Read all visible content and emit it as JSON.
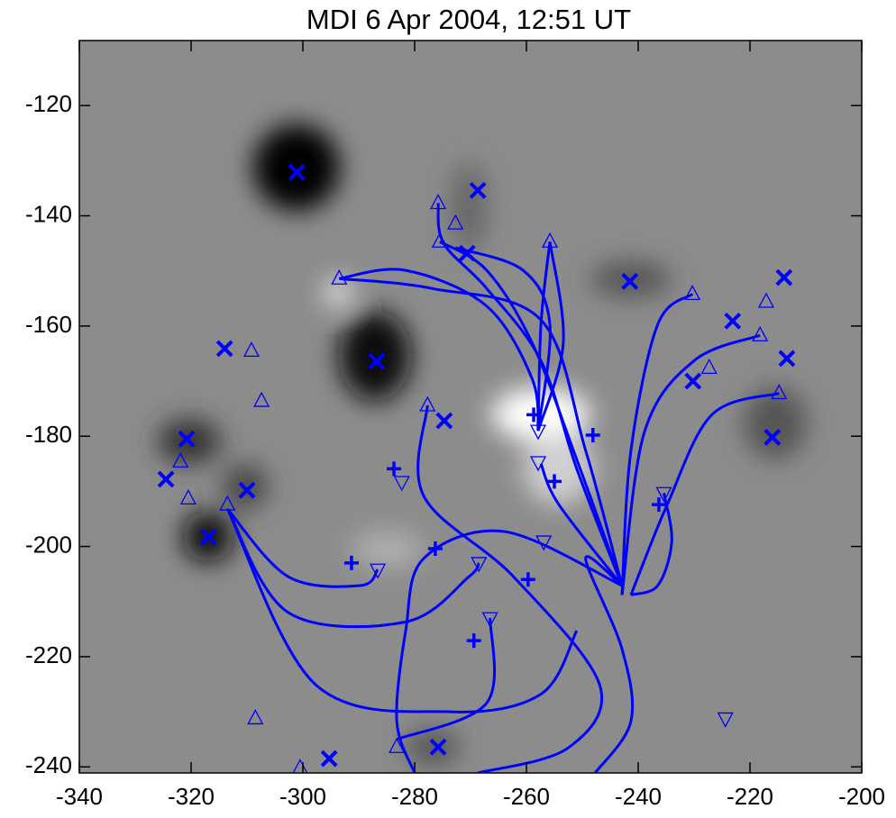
{
  "chart_data": {
    "type": "scatter",
    "title": "MDI 6 Apr 2004, 12:51 UT",
    "xlim": [
      -340,
      -200
    ],
    "ylim": [
      -241.1,
      -108.2
    ],
    "xticks": [
      -340,
      -320,
      -300,
      -280,
      -260,
      -240,
      -220,
      -200
    ],
    "yticks": [
      -120,
      -140,
      -160,
      -180,
      -200,
      -220,
      -240
    ],
    "series": [
      {
        "marker": "x",
        "color": "#0000ff",
        "x": [
          -301.1,
          -268.7,
          -270.6,
          -241.5,
          -213.9,
          -223.1,
          -213.4,
          -230.2,
          -216.0,
          -286.8,
          -314.0,
          -274.7,
          -320.8,
          -310.0,
          -324.5,
          -316.9,
          -295.3,
          -275.8
        ],
        "y": [
          -132.1,
          -135.4,
          -146.8,
          -151.9,
          -151.2,
          -159.1,
          -165.9,
          -170.0,
          -180.2,
          -166.4,
          -164.1,
          -177.2,
          -180.5,
          -189.8,
          -187.8,
          -198.3,
          -238.5,
          -236.4
        ]
      },
      {
        "marker": "plus",
        "color": "#0000ff",
        "x": [
          -258.7,
          -248.1,
          -255.0,
          -236.3,
          -283.7,
          -291.3,
          -276.3,
          -259.7,
          -269.4
        ],
        "y": [
          -176.1,
          -179.8,
          -188.2,
          -192.4,
          -185.9,
          -203.0,
          -200.4,
          -206.0,
          -217.1
        ]
      },
      {
        "marker": "triangle-up",
        "color": "#0000ff",
        "x": [
          -275.8,
          -272.7,
          -275.5,
          -255.8,
          -293.5,
          -230.3,
          -217.1,
          -218.2,
          -227.3,
          -214.8,
          -309.2,
          -307.4,
          -277.7,
          -321.9,
          -320.5,
          -313.5,
          -308.5,
          -300.5,
          -283.2
        ],
        "y": [
          -137.7,
          -141.4,
          -144.7,
          -144.7,
          -151.4,
          -154.2,
          -155.6,
          -161.7,
          -167.6,
          -172.2,
          -164.5,
          -173.6,
          -174.4,
          -184.6,
          -191.3,
          -192.4,
          -231.2,
          -240.2,
          -236.4
        ]
      },
      {
        "marker": "triangle-down",
        "color": "#0000ff",
        "x": [
          -257.9,
          -257.9,
          -282.3,
          -235.4,
          -256.9,
          -286.6,
          -268.5,
          -266.5,
          -224.4
        ],
        "y": [
          -179.0,
          -184.7,
          -188.3,
          -190.3,
          -199.1,
          -204.2,
          -203.0,
          -213.0,
          -231.2
        ]
      }
    ],
    "field_lines": {
      "color": "#0000ff",
      "lines": [
        {
          "x": [
            -293.5,
            -281.6,
            -267.1,
            -259.0,
            -257.9
          ],
          "y": [
            -151.4,
            -149.9,
            -156.4,
            -169.5,
            -179.0
          ]
        },
        {
          "x": [
            -293.5,
            -276.8,
            -257.4,
            -249.4,
            -242.9
          ],
          "y": [
            -151.4,
            -153.2,
            -158.9,
            -182.6,
            -207.1
          ]
        },
        {
          "x": [
            -275.8,
            -274.8,
            -267.1,
            -257.4,
            -251.0,
            -242.9
          ],
          "y": [
            -137.7,
            -145.0,
            -153.2,
            -166.3,
            -185.9,
            -207.1
          ]
        },
        {
          "x": [
            -275.5,
            -267.1,
            -259.0,
            -251.0,
            -242.9
          ],
          "y": [
            -144.7,
            -149.9,
            -163.0,
            -184.2,
            -207.1
          ]
        },
        {
          "x": [
            -272.7,
            -260.6,
            -255.8,
            -257.9
          ],
          "y": [
            -145.8,
            -149.9,
            -159.7,
            -179.0
          ]
        },
        {
          "x": [
            -255.8,
            -257.4,
            -257.9
          ],
          "y": [
            -144.7,
            -159.7,
            -179.0
          ]
        },
        {
          "x": [
            -255.8,
            -253.4,
            -257.9
          ],
          "y": [
            -144.7,
            -163.0,
            -179.0
          ]
        },
        {
          "x": [
            -242.9,
            -241.3,
            -236.5,
            -230.3
          ],
          "y": [
            -208.8,
            -182.6,
            -159.7,
            -154.2
          ]
        },
        {
          "x": [
            -242.9,
            -238.9,
            -230.0,
            -218.2
          ],
          "y": [
            -208.8,
            -179.3,
            -166.3,
            -161.7
          ]
        },
        {
          "x": [
            -241.3,
            -234.8,
            -226.8,
            -214.8
          ],
          "y": [
            -208.8,
            -192.4,
            -176.1,
            -172.2
          ]
        },
        {
          "x": [
            -313.5,
            -302.6,
            -289.7,
            -286.6
          ],
          "y": [
            -193.2,
            -205.5,
            -207.1,
            -204.2
          ]
        },
        {
          "x": [
            -313.5,
            -302.6,
            -281.6,
            -270.3,
            -268.5
          ],
          "y": [
            -193.2,
            -212.0,
            -213.7,
            -205.5,
            -203.0
          ]
        },
        {
          "x": [
            -313.5,
            -297.7,
            -273.5,
            -257.4,
            -251.0
          ],
          "y": [
            -193.2,
            -225.1,
            -230.0,
            -226.8,
            -215.3
          ]
        },
        {
          "x": [
            -277.7,
            -278.4,
            -262.3,
            -246.9,
            -252.6,
            -268.7
          ],
          "y": [
            -174.4,
            -190.8,
            -205.5,
            -225.1,
            -236.6,
            -241.1
          ]
        },
        {
          "x": [
            -242.9,
            -249.4,
            -242.9,
            -241.3,
            -247.7
          ],
          "y": [
            -207.1,
            -202.2,
            -218.6,
            -231.7,
            -241.1
          ]
        },
        {
          "x": [
            -242.9,
            -263.9,
            -278.4,
            -281.6,
            -283.2,
            -280.0
          ],
          "y": [
            -207.1,
            -197.3,
            -202.2,
            -215.3,
            -231.7,
            -241.1
          ]
        },
        {
          "x": [
            -266.5,
            -267.1,
            -283.2
          ],
          "y": [
            -213.0,
            -228.4,
            -235.0
          ]
        },
        {
          "x": [
            -241.3,
            -236.5,
            -234.0,
            -235.4
          ],
          "y": [
            -208.8,
            -207.1,
            -199.1,
            -190.3
          ]
        },
        {
          "x": [
            -242.9,
            -254.2,
            -257.4
          ],
          "y": [
            -207.1,
            -192.4,
            -185.0
          ]
        }
      ]
    }
  }
}
